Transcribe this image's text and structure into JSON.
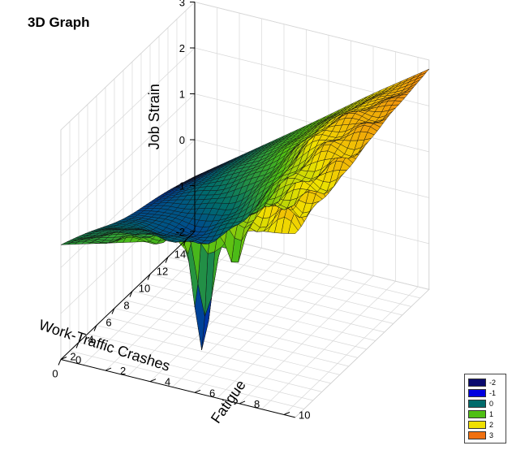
{
  "title": "3D Graph",
  "chart_data": {
    "type": "surface",
    "title": "3D Graph",
    "xlabel": "Work-Traffic Crashes",
    "ylabel": "Fatigue",
    "zlabel": "Job Strain",
    "x_ticks": [
      "0",
      "2",
      "4",
      "6",
      "8",
      "10",
      "12",
      "14"
    ],
    "y_ticks": [
      "0",
      "2",
      "4",
      "6",
      "8",
      "10"
    ],
    "z_ticks": [
      "-2",
      "-1",
      "0",
      "1",
      "2",
      "3"
    ],
    "xlim": [
      0,
      15
    ],
    "ylim": [
      0,
      10.5
    ],
    "zlim": [
      -2,
      3
    ],
    "grid": true,
    "legend_position": "bottom-right",
    "color_scale": [
      {
        "label": "-2",
        "color": "#0b0b6e"
      },
      {
        "label": "-1",
        "color": "#0000e0"
      },
      {
        "label": "0",
        "color": "#006b6b"
      },
      {
        "label": "1",
        "color": "#4fbf14"
      },
      {
        "label": "2",
        "color": "#f0e000"
      },
      {
        "label": "3",
        "color": "#f07010"
      }
    ],
    "surface_profile": {
      "corner_values": {
        "crashes_14_fatigue_0": -0.8,
        "crashes_14_fatigue_10": 2.8,
        "crashes_0_fatigue_0": 0.5,
        "crashes_0_fatigue_10": 2.0
      },
      "peaks": [
        {
          "crashes": 13,
          "fatigue": 9.5,
          "strain": 2.8
        },
        {
          "crashes": 10,
          "fatigue": 8,
          "strain": 2.6
        },
        {
          "crashes": 2,
          "fatigue": 9,
          "strain": 2.4
        },
        {
          "crashes": 0.5,
          "fatigue": 8.5,
          "strain": 2.2
        }
      ],
      "dips": [
        {
          "crashes": 7,
          "fatigue": 4,
          "strain": 0.2
        },
        {
          "crashes": 0.5,
          "fatigue": 6,
          "strain": -0.9
        }
      ]
    }
  }
}
